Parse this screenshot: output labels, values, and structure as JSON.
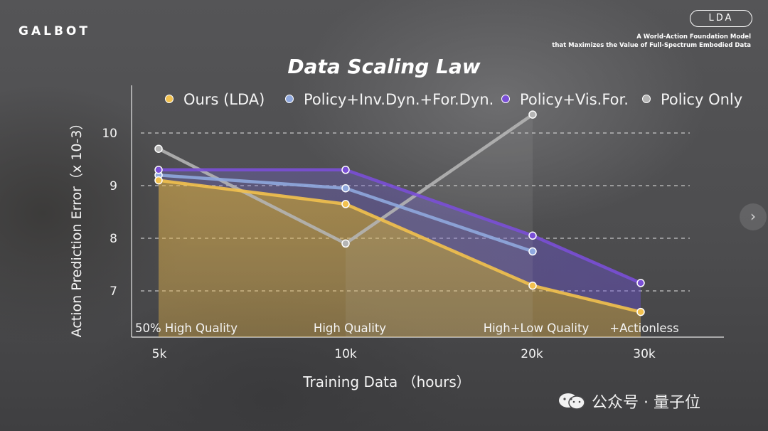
{
  "header": {
    "brand": "GALBOT",
    "tag": "LDA",
    "tagline_line1": "A World-Action Foundation Model",
    "tagline_line2": "that Maximizes the Value of Full-Spectrum Embodied Data"
  },
  "watermark": {
    "text": "公众号 · 量子位",
    "icon": "wechat-icon"
  },
  "navigation": {
    "next_icon": "chevron-right-icon",
    "next_glyph": "›"
  },
  "colors": {
    "ours": "#f2c14e",
    "inv_for_dyn": "#8fa8de",
    "vis_for": "#7a4fd6",
    "policy_only": "#b4b4b4",
    "grid": "#dcdcdc"
  },
  "chart_data": {
    "type": "line",
    "title": "Data Scaling Law",
    "xlabel": "Training Data （hours）",
    "ylabel": "Action Prediction Error（x 10-3）",
    "categories": [
      "5k",
      "10k",
      "20k",
      "30k"
    ],
    "stage_labels": [
      "50% High Quality",
      "High Quality",
      "High+Low Quality",
      "+Actionless"
    ],
    "yticks": [
      7,
      8,
      9,
      10
    ],
    "ylim": [
      6.2,
      10.5
    ],
    "grid": true,
    "legend_position": "top",
    "series": [
      {
        "name": "Ours (LDA)",
        "values": [
          9.1,
          8.65,
          7.1,
          6.6
        ]
      },
      {
        "name": "Policy+Inv.Dyn.+For.Dyn.",
        "values": [
          9.2,
          8.95,
          7.75,
          null
        ]
      },
      {
        "name": "Policy+Vis.For.",
        "values": [
          9.3,
          9.3,
          8.05,
          7.15
        ]
      },
      {
        "name": "Policy Only",
        "values": [
          9.7,
          7.9,
          10.35,
          null
        ]
      }
    ]
  }
}
